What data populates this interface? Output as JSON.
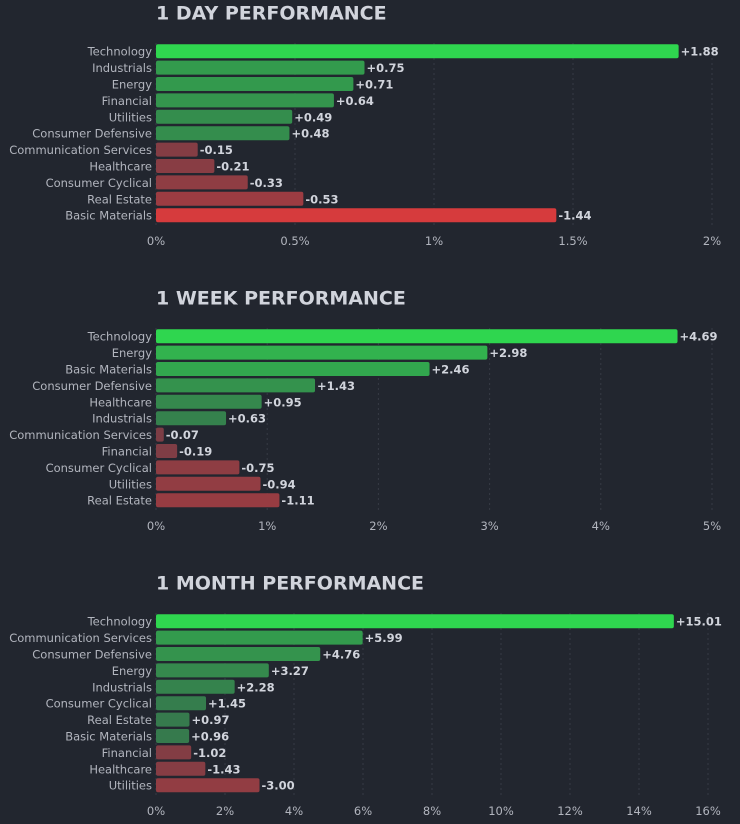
{
  "chart_data": [
    {
      "type": "bar",
      "orientation": "horizontal",
      "title": "1 DAY PERFORMANCE",
      "categories": [
        "Technology",
        "Industrials",
        "Energy",
        "Financial",
        "Utilities",
        "Consumer Defensive",
        "Communication Services",
        "Healthcare",
        "Consumer Cyclical",
        "Real Estate",
        "Basic Materials"
      ],
      "values": [
        1.88,
        0.75,
        0.71,
        0.64,
        0.49,
        0.48,
        -0.15,
        -0.21,
        -0.33,
        -0.53,
        -1.44
      ],
      "value_labels": [
        "+1.88",
        "+0.75",
        "+0.71",
        "+0.64",
        "+0.49",
        "+0.48",
        "-0.15",
        "-0.21",
        "-0.33",
        "-0.53",
        "-1.44"
      ],
      "positive_color": "#2fd64f",
      "negative_color": "#f23a3a",
      "xlim": [
        0,
        2
      ],
      "xticks": [
        {
          "value": 0,
          "label": "0%"
        },
        {
          "value": 0.5,
          "label": "0.5%"
        },
        {
          "value": 1,
          "label": "1%"
        },
        {
          "value": 1.5,
          "label": "1.5%"
        },
        {
          "value": 2,
          "label": "2%"
        }
      ],
      "grid": true
    },
    {
      "type": "bar",
      "orientation": "horizontal",
      "title": "1 WEEK PERFORMANCE",
      "categories": [
        "Technology",
        "Energy",
        "Basic Materials",
        "Consumer Defensive",
        "Healthcare",
        "Industrials",
        "Communication Services",
        "Financial",
        "Consumer Cyclical",
        "Utilities",
        "Real Estate"
      ],
      "values": [
        4.69,
        2.98,
        2.46,
        1.43,
        0.95,
        0.63,
        -0.07,
        -0.19,
        -0.75,
        -0.94,
        -1.11
      ],
      "value_labels": [
        "+4.69",
        "+2.98",
        "+2.46",
        "+1.43",
        "+0.95",
        "+0.63",
        "-0.07",
        "-0.19",
        "-0.75",
        "-0.94",
        "-1.11"
      ],
      "positive_color": "#2fd64f",
      "negative_color": "#f23a3a",
      "xlim": [
        0,
        5
      ],
      "xticks": [
        {
          "value": 0,
          "label": "0%"
        },
        {
          "value": 1,
          "label": "1%"
        },
        {
          "value": 2,
          "label": "2%"
        },
        {
          "value": 3,
          "label": "3%"
        },
        {
          "value": 4,
          "label": "4%"
        },
        {
          "value": 5,
          "label": "5%"
        }
      ],
      "grid": true
    },
    {
      "type": "bar",
      "orientation": "horizontal",
      "title": "1 MONTH PERFORMANCE",
      "categories": [
        "Technology",
        "Communication Services",
        "Consumer Defensive",
        "Energy",
        "Industrials",
        "Consumer Cyclical",
        "Real Estate",
        "Basic Materials",
        "Financial",
        "Healthcare",
        "Utilities"
      ],
      "values": [
        15.01,
        5.99,
        4.76,
        3.27,
        2.28,
        1.45,
        0.97,
        0.96,
        -1.02,
        -1.43,
        -3.0
      ],
      "value_labels": [
        "+15.01",
        "+5.99",
        "+4.76",
        "+3.27",
        "+2.28",
        "+1.45",
        "+0.97",
        "+0.96",
        "-1.02",
        "-1.43",
        "-3.00"
      ],
      "positive_color": "#2fd64f",
      "negative_color": "#f23a3a",
      "xlim": [
        0,
        16
      ],
      "xticks": [
        {
          "value": 0,
          "label": "0%"
        },
        {
          "value": 2,
          "label": "2%"
        },
        {
          "value": 4,
          "label": "4%"
        },
        {
          "value": 6,
          "label": "6%"
        },
        {
          "value": 8,
          "label": "8%"
        },
        {
          "value": 10,
          "label": "10%"
        },
        {
          "value": 12,
          "label": "12%"
        },
        {
          "value": 14,
          "label": "14%"
        },
        {
          "value": 16,
          "label": "16%"
        }
      ],
      "grid": true
    }
  ]
}
